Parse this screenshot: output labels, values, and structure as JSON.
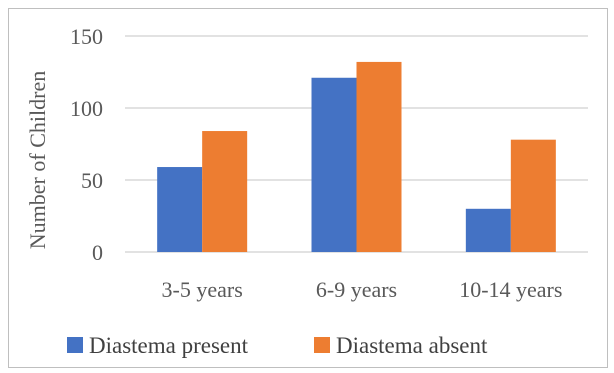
{
  "chart_data": {
    "type": "bar",
    "title": "",
    "xlabel": "",
    "ylabel": "Number of Children",
    "ylim": [
      0,
      150
    ],
    "yticks": [
      0,
      50,
      100,
      150
    ],
    "grid": true,
    "legend_position": "bottom",
    "categories": [
      "3-5 years",
      "6-9 years",
      "10-14 years"
    ],
    "series": [
      {
        "name": "Diastema present",
        "color": "#4472c4",
        "values": [
          59,
          121,
          30
        ]
      },
      {
        "name": "Diastema absent",
        "color": "#ed7d31",
        "values": [
          84,
          132,
          78
        ]
      }
    ]
  }
}
